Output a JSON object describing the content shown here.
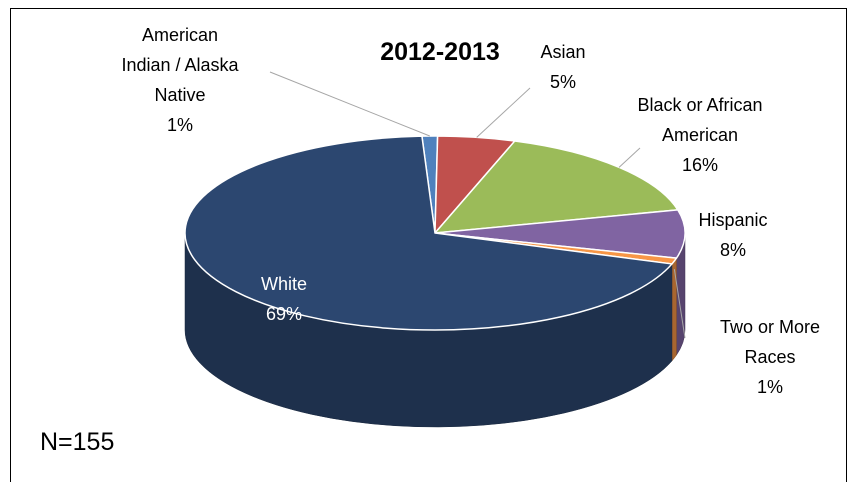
{
  "chart_data": {
    "type": "pie",
    "title": "2012-2013",
    "note": "N=155",
    "slices": [
      {
        "name": "American Indian / Alaska Native",
        "label_lines": [
          "American",
          "Indian / Alaska",
          "Native"
        ],
        "pct_label": "1%",
        "value": 1,
        "color": "#4f81bd"
      },
      {
        "name": "Asian",
        "label_lines": [
          "Asian"
        ],
        "pct_label": "5%",
        "value": 5,
        "color": "#c0504d"
      },
      {
        "name": "Black or African American",
        "label_lines": [
          "Black or African",
          "American"
        ],
        "pct_label": "16%",
        "value": 16,
        "color": "#9bbb59"
      },
      {
        "name": "Hispanic",
        "label_lines": [
          "Hispanic"
        ],
        "pct_label": "8%",
        "value": 8,
        "color": "#8064a2"
      },
      {
        "name": "Two or More Races",
        "label_lines": [
          "Two or More",
          "Races"
        ],
        "pct_label": "1%",
        "value": 1,
        "color": "#f79646"
      },
      {
        "name": "White",
        "label_lines": [
          "White"
        ],
        "pct_label": "69%",
        "value": 69,
        "color": "#2c4770"
      }
    ]
  }
}
